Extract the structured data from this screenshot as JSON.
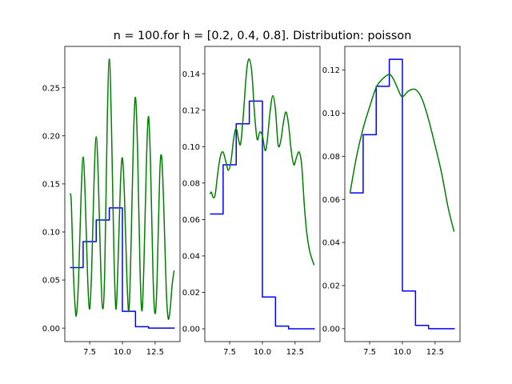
{
  "figure": {
    "title": "n = 100.for h = [0.2, 0.4, 0.8]. Distribution: poisson"
  },
  "chart_data": [
    {
      "type": "line",
      "xlim": [
        5.6,
        14.4
      ],
      "ylim": [
        -0.014,
        0.293
      ],
      "xticks": [
        7.5,
        10.0,
        12.5
      ],
      "xtick_labels": [
        "7.5",
        "10.0",
        "12.5"
      ],
      "yticks": [
        0.0,
        0.05,
        0.1,
        0.15,
        0.2,
        0.25
      ],
      "ytick_labels": [
        "0.00",
        "0.05",
        "0.10",
        "0.15",
        "0.20",
        "0.25"
      ],
      "grid": false,
      "series": [
        {
          "kind": "step",
          "color": "#0000ff",
          "steps": [
            {
              "x": [
                6,
                7
              ],
              "y": 0.063
            },
            {
              "x": [
                7,
                8
              ],
              "y": 0.09
            },
            {
              "x": [
                8,
                9
              ],
              "y": 0.1125
            },
            {
              "x": [
                9,
                10
              ],
              "y": 0.125
            },
            {
              "x": [
                10,
                11
              ],
              "y": 0.0175
            },
            {
              "x": [
                11,
                12
              ],
              "y": 0.0015
            },
            {
              "x": [
                12,
                14
              ],
              "y": 0.0
            }
          ]
        },
        {
          "kind": "curve",
          "color": "#008000",
          "points": [
            [
              6.0,
              0.14
            ],
            [
              6.1,
              0.13
            ],
            [
              6.25,
              0.06
            ],
            [
              6.4,
              0.02
            ],
            [
              6.5,
              0.015
            ],
            [
              6.65,
              0.05
            ],
            [
              6.85,
              0.14
            ],
            [
              7.0,
              0.178
            ],
            [
              7.15,
              0.14
            ],
            [
              7.35,
              0.05
            ],
            [
              7.5,
              0.02
            ],
            [
              7.65,
              0.06
            ],
            [
              7.85,
              0.16
            ],
            [
              8.0,
              0.199
            ],
            [
              8.15,
              0.16
            ],
            [
              8.35,
              0.06
            ],
            [
              8.5,
              0.02
            ],
            [
              8.65,
              0.06
            ],
            [
              8.85,
              0.22
            ],
            [
              9.0,
              0.28
            ],
            [
              9.15,
              0.22
            ],
            [
              9.35,
              0.08
            ],
            [
              9.5,
              0.02
            ],
            [
              9.65,
              0.06
            ],
            [
              9.85,
              0.15
            ],
            [
              10.0,
              0.177
            ],
            [
              10.15,
              0.14
            ],
            [
              10.35,
              0.05
            ],
            [
              10.5,
              0.018
            ],
            [
              10.65,
              0.08
            ],
            [
              10.85,
              0.2
            ],
            [
              11.0,
              0.24
            ],
            [
              11.15,
              0.19
            ],
            [
              11.35,
              0.06
            ],
            [
              11.5,
              0.018
            ],
            [
              11.65,
              0.07
            ],
            [
              11.85,
              0.18
            ],
            [
              12.0,
              0.22
            ],
            [
              12.15,
              0.17
            ],
            [
              12.35,
              0.05
            ],
            [
              12.5,
              0.015
            ],
            [
              12.65,
              0.05
            ],
            [
              12.85,
              0.16
            ],
            [
              13.0,
              0.178
            ],
            [
              13.15,
              0.13
            ],
            [
              13.35,
              0.04
            ],
            [
              13.5,
              0.01
            ],
            [
              13.65,
              0.02
            ],
            [
              13.8,
              0.045
            ],
            [
              13.95,
              0.06
            ]
          ]
        }
      ]
    },
    {
      "type": "line",
      "xlim": [
        5.6,
        14.4
      ],
      "ylim": [
        -0.007,
        0.155
      ],
      "xticks": [
        7.5,
        10.0,
        12.5
      ],
      "xtick_labels": [
        "7.5",
        "10.0",
        "12.5"
      ],
      "yticks": [
        0.0,
        0.02,
        0.04,
        0.06,
        0.08,
        0.1,
        0.12,
        0.14
      ],
      "ytick_labels": [
        "0.00",
        "0.02",
        "0.04",
        "0.06",
        "0.08",
        "0.10",
        "0.12",
        "0.14"
      ],
      "grid": false,
      "series": [
        {
          "kind": "step",
          "color": "#0000ff",
          "steps": [
            {
              "x": [
                6,
                7
              ],
              "y": 0.063
            },
            {
              "x": [
                7,
                8
              ],
              "y": 0.09
            },
            {
              "x": [
                8,
                9
              ],
              "y": 0.1125
            },
            {
              "x": [
                9,
                10
              ],
              "y": 0.125
            },
            {
              "x": [
                10,
                11
              ],
              "y": 0.0175
            },
            {
              "x": [
                11,
                12
              ],
              "y": 0.0015
            },
            {
              "x": [
                12,
                14
              ],
              "y": 0.0
            }
          ]
        },
        {
          "kind": "curve",
          "color": "#008000",
          "points": [
            [
              6.0,
              0.074
            ],
            [
              6.1,
              0.075
            ],
            [
              6.25,
              0.072
            ],
            [
              6.4,
              0.074
            ],
            [
              6.6,
              0.086
            ],
            [
              6.8,
              0.095
            ],
            [
              7.0,
              0.097
            ],
            [
              7.2,
              0.092
            ],
            [
              7.4,
              0.087
            ],
            [
              7.6,
              0.092
            ],
            [
              7.8,
              0.104
            ],
            [
              8.0,
              0.11
            ],
            [
              8.2,
              0.103
            ],
            [
              8.35,
              0.102
            ],
            [
              8.55,
              0.118
            ],
            [
              8.8,
              0.142
            ],
            [
              9.0,
              0.148
            ],
            [
              9.2,
              0.14
            ],
            [
              9.4,
              0.118
            ],
            [
              9.6,
              0.104
            ],
            [
              9.8,
              0.108
            ],
            [
              10.0,
              0.106
            ],
            [
              10.2,
              0.098
            ],
            [
              10.35,
              0.102
            ],
            [
              10.6,
              0.12
            ],
            [
              10.8,
              0.128
            ],
            [
              11.0,
              0.12
            ],
            [
              11.2,
              0.101
            ],
            [
              11.4,
              0.103
            ],
            [
              11.6,
              0.113
            ],
            [
              11.8,
              0.119
            ],
            [
              12.0,
              0.112
            ],
            [
              12.2,
              0.098
            ],
            [
              12.4,
              0.09
            ],
            [
              12.6,
              0.094
            ],
            [
              12.8,
              0.097
            ],
            [
              13.0,
              0.09
            ],
            [
              13.2,
              0.068
            ],
            [
              13.4,
              0.052
            ],
            [
              13.6,
              0.043
            ],
            [
              13.8,
              0.038
            ],
            [
              13.95,
              0.035
            ]
          ]
        }
      ]
    },
    {
      "type": "line",
      "xlim": [
        5.6,
        14.4
      ],
      "ylim": [
        -0.006,
        0.131
      ],
      "xticks": [
        7.5,
        10.0,
        12.5
      ],
      "xtick_labels": [
        "7.5",
        "10.0",
        "12.5"
      ],
      "yticks": [
        0.0,
        0.02,
        0.04,
        0.06,
        0.08,
        0.1,
        0.12
      ],
      "ytick_labels": [
        "0.00",
        "0.02",
        "0.04",
        "0.06",
        "0.08",
        "0.10",
        "0.12"
      ],
      "grid": false,
      "series": [
        {
          "kind": "step",
          "color": "#0000ff",
          "steps": [
            {
              "x": [
                6,
                7
              ],
              "y": 0.063
            },
            {
              "x": [
                7,
                8
              ],
              "y": 0.09
            },
            {
              "x": [
                8,
                9
              ],
              "y": 0.1125
            },
            {
              "x": [
                9,
                10
              ],
              "y": 0.125
            },
            {
              "x": [
                10,
                11
              ],
              "y": 0.0175
            },
            {
              "x": [
                11,
                12
              ],
              "y": 0.0015
            },
            {
              "x": [
                12,
                14
              ],
              "y": 0.0
            }
          ]
        },
        {
          "kind": "curve",
          "color": "#008000",
          "points": [
            [
              6.0,
              0.063
            ],
            [
              6.5,
              0.08
            ],
            [
              7.0,
              0.093
            ],
            [
              7.5,
              0.103
            ],
            [
              8.0,
              0.112
            ],
            [
              8.5,
              0.116
            ],
            [
              9.0,
              0.118
            ],
            [
              9.3,
              0.116
            ],
            [
              9.6,
              0.112
            ],
            [
              9.9,
              0.108
            ],
            [
              10.1,
              0.108
            ],
            [
              10.4,
              0.11
            ],
            [
              10.7,
              0.111
            ],
            [
              11.0,
              0.111
            ],
            [
              11.3,
              0.109
            ],
            [
              11.6,
              0.105
            ],
            [
              12.0,
              0.097
            ],
            [
              12.5,
              0.085
            ],
            [
              13.0,
              0.072
            ],
            [
              13.5,
              0.056
            ],
            [
              13.95,
              0.045
            ]
          ]
        }
      ]
    }
  ]
}
